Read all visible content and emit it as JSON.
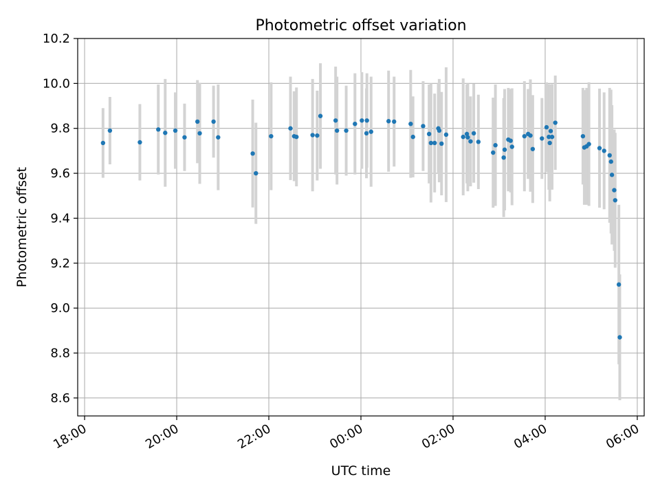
{
  "chart_data": {
    "type": "scatter",
    "title": "Photometric offset variation",
    "xlabel": "UTC time",
    "ylabel": "Photometric offset",
    "x_unit": "UTC time (hours after 18:00 on the first day; 24 = 00:00)",
    "xlim": [
      17.85,
      30.15
    ],
    "ylim": [
      8.52,
      10.2
    ],
    "xticks": [
      18,
      20,
      22,
      24,
      26,
      28,
      30
    ],
    "xtick_labels": [
      "18:00",
      "20:00",
      "22:00",
      "00:00",
      "02:00",
      "04:00",
      "06:00"
    ],
    "yticks": [
      8.6,
      8.8,
      9.0,
      9.2,
      9.4,
      9.6,
      9.8,
      10.0,
      10.2
    ],
    "ytick_labels": [
      "8.6",
      "8.8",
      "9.0",
      "9.2",
      "9.4",
      "9.6",
      "9.8",
      "10.0",
      "10.2"
    ],
    "grid": true,
    "colors": {
      "points": "#1f77b4",
      "errorbars": "#d3d3d3",
      "grid": "#b0b0b0"
    },
    "points": [
      {
        "x": 18.4,
        "y": 9.735,
        "err": 0.155
      },
      {
        "x": 18.55,
        "y": 9.79,
        "err": 0.15
      },
      {
        "x": 19.2,
        "y": 9.738,
        "err": 0.17
      },
      {
        "x": 19.6,
        "y": 9.795,
        "err": 0.2
      },
      {
        "x": 19.75,
        "y": 9.78,
        "err": 0.24
      },
      {
        "x": 19.97,
        "y": 9.79,
        "err": 0.17
      },
      {
        "x": 20.17,
        "y": 9.76,
        "err": 0.15
      },
      {
        "x": 20.45,
        "y": 9.83,
        "err": 0.185
      },
      {
        "x": 20.5,
        "y": 9.778,
        "err": 0.225
      },
      {
        "x": 20.8,
        "y": 9.83,
        "err": 0.16
      },
      {
        "x": 20.9,
        "y": 9.76,
        "err": 0.235
      },
      {
        "x": 21.65,
        "y": 9.688,
        "err": 0.24
      },
      {
        "x": 21.72,
        "y": 9.6,
        "err": 0.225
      },
      {
        "x": 22.05,
        "y": 9.765,
        "err": 0.24
      },
      {
        "x": 22.47,
        "y": 9.8,
        "err": 0.23
      },
      {
        "x": 22.55,
        "y": 9.765,
        "err": 0.2
      },
      {
        "x": 22.6,
        "y": 9.762,
        "err": 0.22
      },
      {
        "x": 22.95,
        "y": 9.77,
        "err": 0.25
      },
      {
        "x": 23.05,
        "y": 9.768,
        "err": 0.2
      },
      {
        "x": 23.12,
        "y": 9.855,
        "err": 0.235
      },
      {
        "x": 23.45,
        "y": 9.835,
        "err": 0.24
      },
      {
        "x": 23.48,
        "y": 9.79,
        "err": 0.24
      },
      {
        "x": 23.68,
        "y": 9.79,
        "err": 0.2
      },
      {
        "x": 23.87,
        "y": 9.82,
        "err": 0.225
      },
      {
        "x": 24.02,
        "y": 9.835,
        "err": 0.215
      },
      {
        "x": 24.12,
        "y": 9.778,
        "err": 0.2
      },
      {
        "x": 24.13,
        "y": 9.835,
        "err": 0.21
      },
      {
        "x": 24.22,
        "y": 9.785,
        "err": 0.245
      },
      {
        "x": 24.6,
        "y": 9.832,
        "err": 0.225
      },
      {
        "x": 24.72,
        "y": 9.83,
        "err": 0.2
      },
      {
        "x": 25.08,
        "y": 9.82,
        "err": 0.24
      },
      {
        "x": 25.13,
        "y": 9.762,
        "err": 0.18
      },
      {
        "x": 25.35,
        "y": 9.81,
        "err": 0.2
      },
      {
        "x": 25.48,
        "y": 9.775,
        "err": 0.22
      },
      {
        "x": 25.52,
        "y": 9.735,
        "err": 0.265
      },
      {
        "x": 25.6,
        "y": 9.735,
        "err": 0.22
      },
      {
        "x": 25.68,
        "y": 9.8,
        "err": 0.2
      },
      {
        "x": 25.7,
        "y": 9.79,
        "err": 0.23
      },
      {
        "x": 25.75,
        "y": 9.732,
        "err": 0.23
      },
      {
        "x": 25.85,
        "y": 9.772,
        "err": 0.3
      },
      {
        "x": 26.22,
        "y": 9.762,
        "err": 0.26
      },
      {
        "x": 26.3,
        "y": 9.775,
        "err": 0.22
      },
      {
        "x": 26.32,
        "y": 9.76,
        "err": 0.24
      },
      {
        "x": 26.38,
        "y": 9.742,
        "err": 0.2
      },
      {
        "x": 26.45,
        "y": 9.778,
        "err": 0.22
      },
      {
        "x": 26.55,
        "y": 9.74,
        "err": 0.21
      },
      {
        "x": 26.87,
        "y": 9.692,
        "err": 0.245
      },
      {
        "x": 26.92,
        "y": 9.725,
        "err": 0.27
      },
      {
        "x": 27.1,
        "y": 9.67,
        "err": 0.265
      },
      {
        "x": 27.12,
        "y": 9.705,
        "err": 0.27
      },
      {
        "x": 27.2,
        "y": 9.75,
        "err": 0.23
      },
      {
        "x": 27.25,
        "y": 9.745,
        "err": 0.23
      },
      {
        "x": 27.28,
        "y": 9.718,
        "err": 0.26
      },
      {
        "x": 27.55,
        "y": 9.765,
        "err": 0.245
      },
      {
        "x": 27.63,
        "y": 9.775,
        "err": 0.2
      },
      {
        "x": 27.68,
        "y": 9.768,
        "err": 0.25
      },
      {
        "x": 27.73,
        "y": 9.708,
        "err": 0.24
      },
      {
        "x": 27.93,
        "y": 9.755,
        "err": 0.18
      },
      {
        "x": 28.03,
        "y": 9.805,
        "err": 0.2
      },
      {
        "x": 28.08,
        "y": 9.762,
        "err": 0.235
      },
      {
        "x": 28.1,
        "y": 9.735,
        "err": 0.26
      },
      {
        "x": 28.12,
        "y": 9.788,
        "err": 0.205
      },
      {
        "x": 28.15,
        "y": 9.762,
        "err": 0.235
      },
      {
        "x": 28.22,
        "y": 9.825,
        "err": 0.21
      },
      {
        "x": 28.82,
        "y": 9.765,
        "err": 0.215
      },
      {
        "x": 28.85,
        "y": 9.715,
        "err": 0.255
      },
      {
        "x": 28.9,
        "y": 9.72,
        "err": 0.26
      },
      {
        "x": 28.95,
        "y": 9.73,
        "err": 0.275
      },
      {
        "x": 29.18,
        "y": 9.712,
        "err": 0.265
      },
      {
        "x": 29.28,
        "y": 9.7,
        "err": 0.26
      },
      {
        "x": 29.4,
        "y": 9.68,
        "err": 0.3
      },
      {
        "x": 29.43,
        "y": 9.652,
        "err": 0.32
      },
      {
        "x": 29.45,
        "y": 9.593,
        "err": 0.31
      },
      {
        "x": 29.5,
        "y": 9.525,
        "err": 0.27
      },
      {
        "x": 29.52,
        "y": 9.48,
        "err": 0.3
      },
      {
        "x": 29.6,
        "y": 9.105,
        "err": 0.355
      },
      {
        "x": 29.62,
        "y": 8.87,
        "err": 0.28
      }
    ]
  }
}
